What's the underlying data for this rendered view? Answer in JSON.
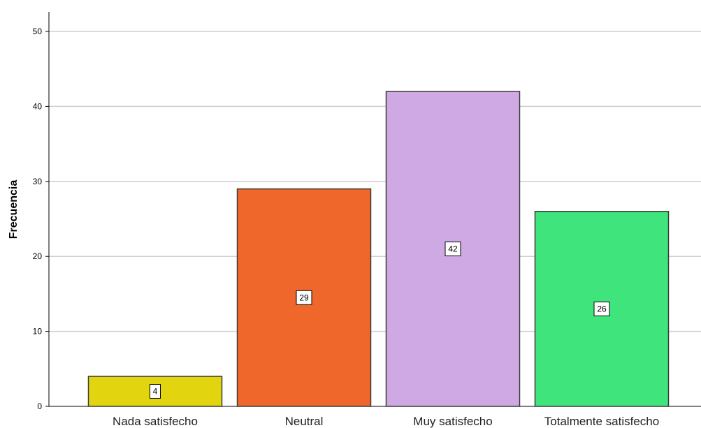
{
  "chart_data": {
    "type": "bar",
    "categories": [
      "Nada satisfecho",
      "Neutral",
      "Muy satisfecho",
      "Totalmente satisfecho"
    ],
    "values": [
      4,
      29,
      42,
      26
    ],
    "data_labels": [
      "4",
      "29",
      "42",
      "26"
    ],
    "colors": [
      "#e2d40e",
      "#f0672c",
      "#cfa9e3",
      "#3fe57c"
    ],
    "ylabel": "Frecuencia",
    "xlabel": "",
    "ylim": [
      0,
      50
    ],
    "yticks": [
      0,
      10,
      20,
      30,
      40,
      50
    ],
    "ytick_labels": [
      "0",
      "10",
      "20",
      "30",
      "40",
      "50"
    ],
    "grid": true
  }
}
